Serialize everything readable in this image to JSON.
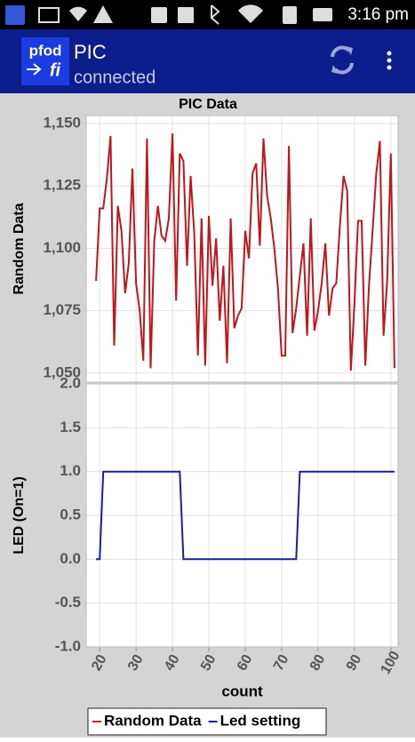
{
  "status_bar": {
    "time": "3:16 pm"
  },
  "app_bar": {
    "logo_top": "pfod",
    "logo_bottom": "fi",
    "title": "PIC",
    "subtitle": "connected"
  },
  "chart_data": [
    {
      "type": "line",
      "title": "PIC Data",
      "ylabel": "Random Data",
      "x": [
        19,
        20,
        21,
        22,
        23,
        24,
        25,
        26,
        27,
        28,
        29,
        30,
        31,
        32,
        33,
        34,
        35,
        36,
        37,
        38,
        39,
        40,
        41,
        42,
        43,
        44,
        45,
        46,
        47,
        48,
        49,
        50,
        51,
        52,
        53,
        54,
        55,
        56,
        57,
        58,
        59,
        60,
        61,
        62,
        63,
        64,
        65,
        66,
        67,
        68,
        69,
        70,
        71,
        72,
        73,
        74,
        75,
        76,
        77,
        78,
        79,
        80,
        81,
        82,
        83,
        84,
        85,
        86,
        87,
        88,
        89,
        90,
        91,
        92,
        93,
        94,
        95,
        96,
        97,
        98,
        99,
        100,
        101
      ],
      "series": [
        {
          "name": "Random Data",
          "color": "#c0161c",
          "values": [
            1087,
            1116,
            1116,
            1128,
            1145,
            1061,
            1117,
            1107,
            1082,
            1094,
            1132,
            1086,
            1075,
            1055,
            1144,
            1052,
            1103,
            1117,
            1105,
            1103,
            1112,
            1146,
            1079,
            1138,
            1135,
            1093,
            1129,
            1106,
            1057,
            1112,
            1053,
            1113,
            1085,
            1104,
            1071,
            1093,
            1054,
            1112,
            1068,
            1073,
            1076,
            1107,
            1096,
            1130,
            1134,
            1101,
            1144,
            1121,
            1112,
            1100,
            1084,
            1057,
            1057,
            1141,
            1066,
            1076,
            1089,
            1102,
            1065,
            1112,
            1067,
            1075,
            1086,
            1102,
            1073,
            1084,
            1086,
            1109,
            1129,
            1123,
            1051,
            1078,
            1111,
            1111,
            1053,
            1085,
            1107,
            1130,
            1143,
            1065,
            1087,
            1138,
            1052
          ]
        }
      ],
      "xlim": [
        16.3,
        102
      ],
      "xticks": [
        20,
        30,
        40,
        50,
        60,
        70,
        80,
        90,
        100
      ],
      "ylim": [
        1046.4,
        1153.2
      ],
      "yticks": [
        {
          "value": 1050,
          "label": "1,050"
        },
        {
          "value": 1075,
          "label": "1,075"
        },
        {
          "value": 1100,
          "label": "1,100"
        },
        {
          "value": 1125,
          "label": "1,125"
        },
        {
          "value": 1150,
          "label": "1,150"
        }
      ],
      "grid": true
    },
    {
      "type": "line",
      "ylabel": "LED (On=1)",
      "xlabel": "count",
      "x": [
        19,
        20,
        21,
        22,
        23,
        24,
        25,
        26,
        27,
        28,
        29,
        30,
        31,
        32,
        33,
        34,
        35,
        36,
        37,
        38,
        39,
        40,
        41,
        42,
        43,
        44,
        45,
        46,
        47,
        48,
        49,
        50,
        51,
        52,
        53,
        54,
        55,
        56,
        57,
        58,
        59,
        60,
        61,
        62,
        63,
        64,
        65,
        66,
        67,
        68,
        69,
        70,
        71,
        72,
        73,
        74,
        75,
        76,
        77,
        78,
        79,
        80,
        81,
        82,
        83,
        84,
        85,
        86,
        87,
        88,
        89,
        90,
        91,
        92,
        93,
        94,
        95,
        96,
        97,
        98,
        99,
        100,
        101
      ],
      "series": [
        {
          "name": "Led setting",
          "color": "#1c1ca8",
          "values": [
            0,
            0,
            1,
            1,
            1,
            1,
            1,
            1,
            1,
            1,
            1,
            1,
            1,
            1,
            1,
            1,
            1,
            1,
            1,
            1,
            1,
            1,
            1,
            1,
            0,
            0,
            0,
            0,
            0,
            0,
            0,
            0,
            0,
            0,
            0,
            0,
            0,
            0,
            0,
            0,
            0,
            0,
            0,
            0,
            0,
            0,
            0,
            0,
            0,
            0,
            0,
            0,
            0,
            0,
            0,
            0,
            1,
            1,
            1,
            1,
            1,
            1,
            1,
            1,
            1,
            1,
            1,
            1,
            1,
            1,
            1,
            1,
            1,
            1,
            1,
            1,
            1,
            1,
            1,
            1,
            1,
            1,
            1
          ]
        }
      ],
      "xlim": [
        16.3,
        102
      ],
      "xticks": [
        20,
        30,
        40,
        50,
        60,
        70,
        80,
        90,
        100
      ],
      "ylim": [
        -1,
        2
      ],
      "yticks": [
        {
          "value": -1,
          "label": "-1.0"
        },
        {
          "value": -0.5,
          "label": "-0.5"
        },
        {
          "value": 0,
          "label": "0.0"
        },
        {
          "value": 0.5,
          "label": "0.5"
        },
        {
          "value": 1,
          "label": "1.0"
        },
        {
          "value": 1.5,
          "label": "1.5"
        },
        {
          "value": 2,
          "label": "2.0"
        }
      ],
      "grid": true
    }
  ]
}
